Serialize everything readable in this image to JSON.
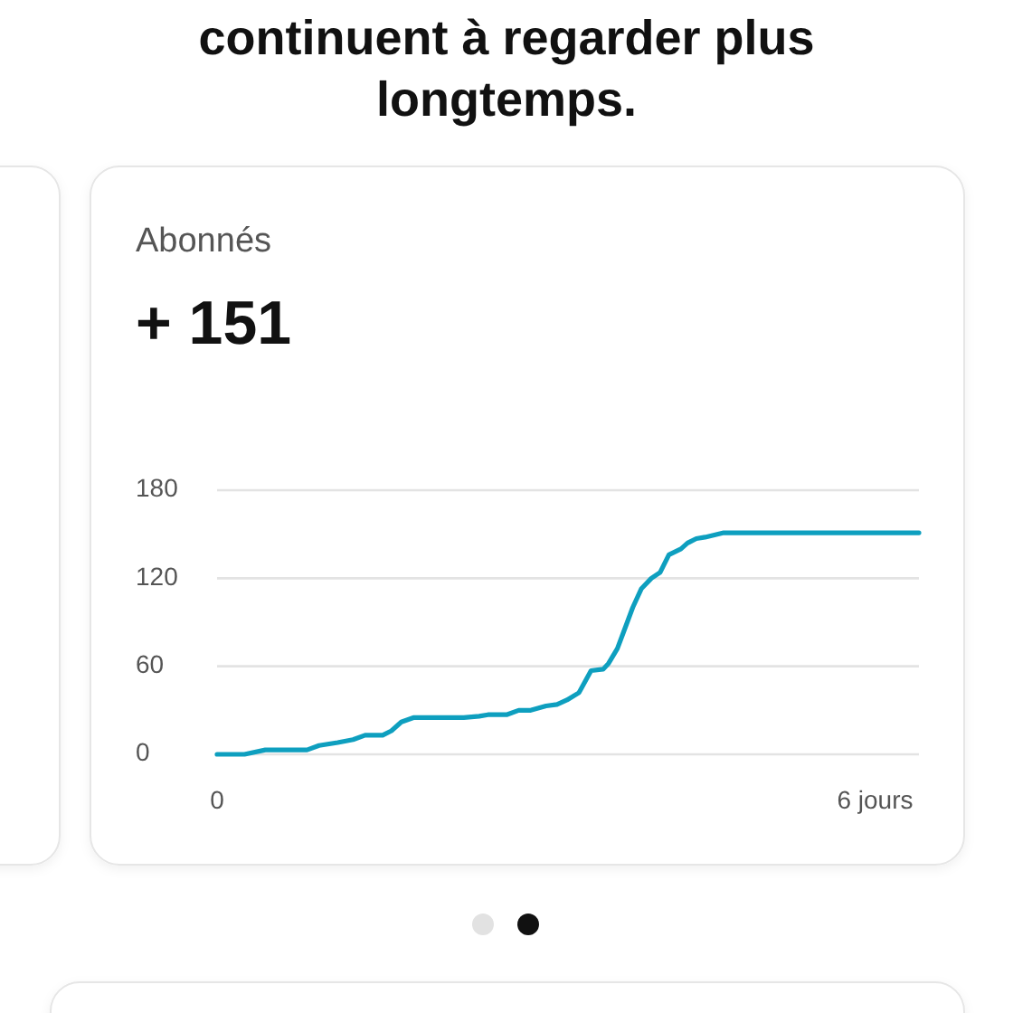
{
  "chart_data": {
    "type": "line",
    "title": "Abonnés",
    "subtitle": "+ 151",
    "annotations": [
      "continuent à regarder plus longtemps."
    ],
    "x": [
      0,
      0.25,
      0.44,
      0.82,
      0.93,
      1.1,
      1.24,
      1.35,
      1.51,
      1.59,
      1.68,
      1.79,
      2.25,
      2.39,
      2.47,
      2.64,
      2.75,
      2.86,
      3.0,
      3.1,
      3.19,
      3.3,
      3.41,
      3.52,
      3.57,
      3.65,
      3.71,
      3.79,
      3.87,
      3.96,
      4.04,
      4.12,
      4.23,
      4.29,
      4.37,
      4.45,
      4.62,
      6.4
    ],
    "series": [
      {
        "color": "#0e9fbf",
        "values": [
          0,
          0,
          3,
          3,
          6,
          8,
          10,
          13,
          13,
          16,
          22,
          25,
          25,
          26,
          27,
          27,
          30,
          30,
          33,
          34,
          37,
          42,
          57,
          58,
          62,
          72,
          84,
          100,
          113,
          120,
          124,
          136,
          140,
          144,
          147,
          148,
          151,
          151
        ]
      }
    ],
    "xlim": [
      0,
      6.4
    ],
    "xticks": [
      0,
      {
        "value": 6,
        "label": "6 jours"
      }
    ],
    "ylim": [
      0,
      180
    ],
    "yticks": [
      0,
      60,
      120,
      180
    ],
    "grid": "y"
  }
}
